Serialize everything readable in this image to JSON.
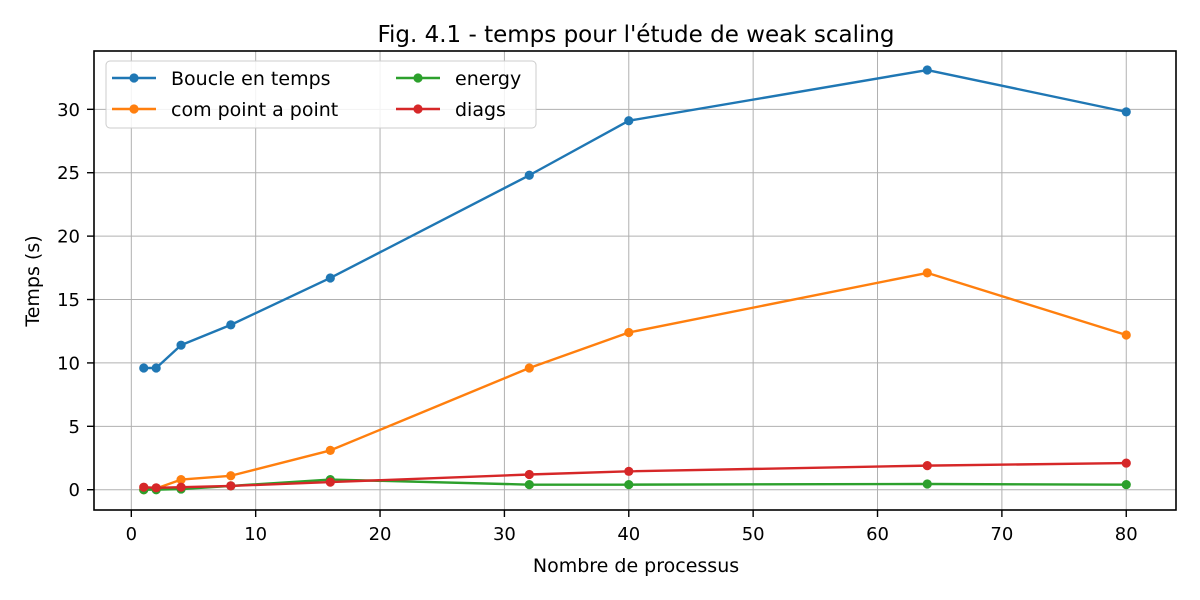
{
  "chart_data": {
    "type": "line",
    "title": "Fig. 4.1 - temps pour l'étude de weak scaling",
    "xlabel": "Nombre de processus",
    "ylabel": "Temps (s)",
    "xlim": [
      -3,
      84
    ],
    "ylim": [
      -1.6,
      34.6
    ],
    "xticks": [
      0,
      10,
      20,
      30,
      40,
      50,
      60,
      70,
      80
    ],
    "yticks": [
      0,
      5,
      10,
      15,
      20,
      25,
      30
    ],
    "grid": true,
    "legend_position": "top-left",
    "legend_columns": 2,
    "x": [
      1,
      2,
      4,
      8,
      16,
      32,
      40,
      64,
      80
    ],
    "series": [
      {
        "name": "Boucle en temps",
        "color": "#1f77b4",
        "values": [
          9.6,
          9.6,
          11.4,
          13.0,
          16.7,
          24.8,
          29.1,
          33.1,
          29.8
        ]
      },
      {
        "name": "com point a point",
        "color": "#ff7f0e",
        "values": [
          0.0,
          0.1,
          0.8,
          1.1,
          3.1,
          9.6,
          12.4,
          17.1,
          12.2
        ]
      },
      {
        "name": "energy",
        "color": "#2ca02c",
        "values": [
          0.0,
          0.0,
          0.05,
          0.3,
          0.8,
          0.4,
          0.4,
          0.45,
          0.4
        ]
      },
      {
        "name": "diags",
        "color": "#d62728",
        "values": [
          0.2,
          0.15,
          0.2,
          0.3,
          0.6,
          1.2,
          1.45,
          1.9,
          2.1
        ]
      }
    ]
  }
}
